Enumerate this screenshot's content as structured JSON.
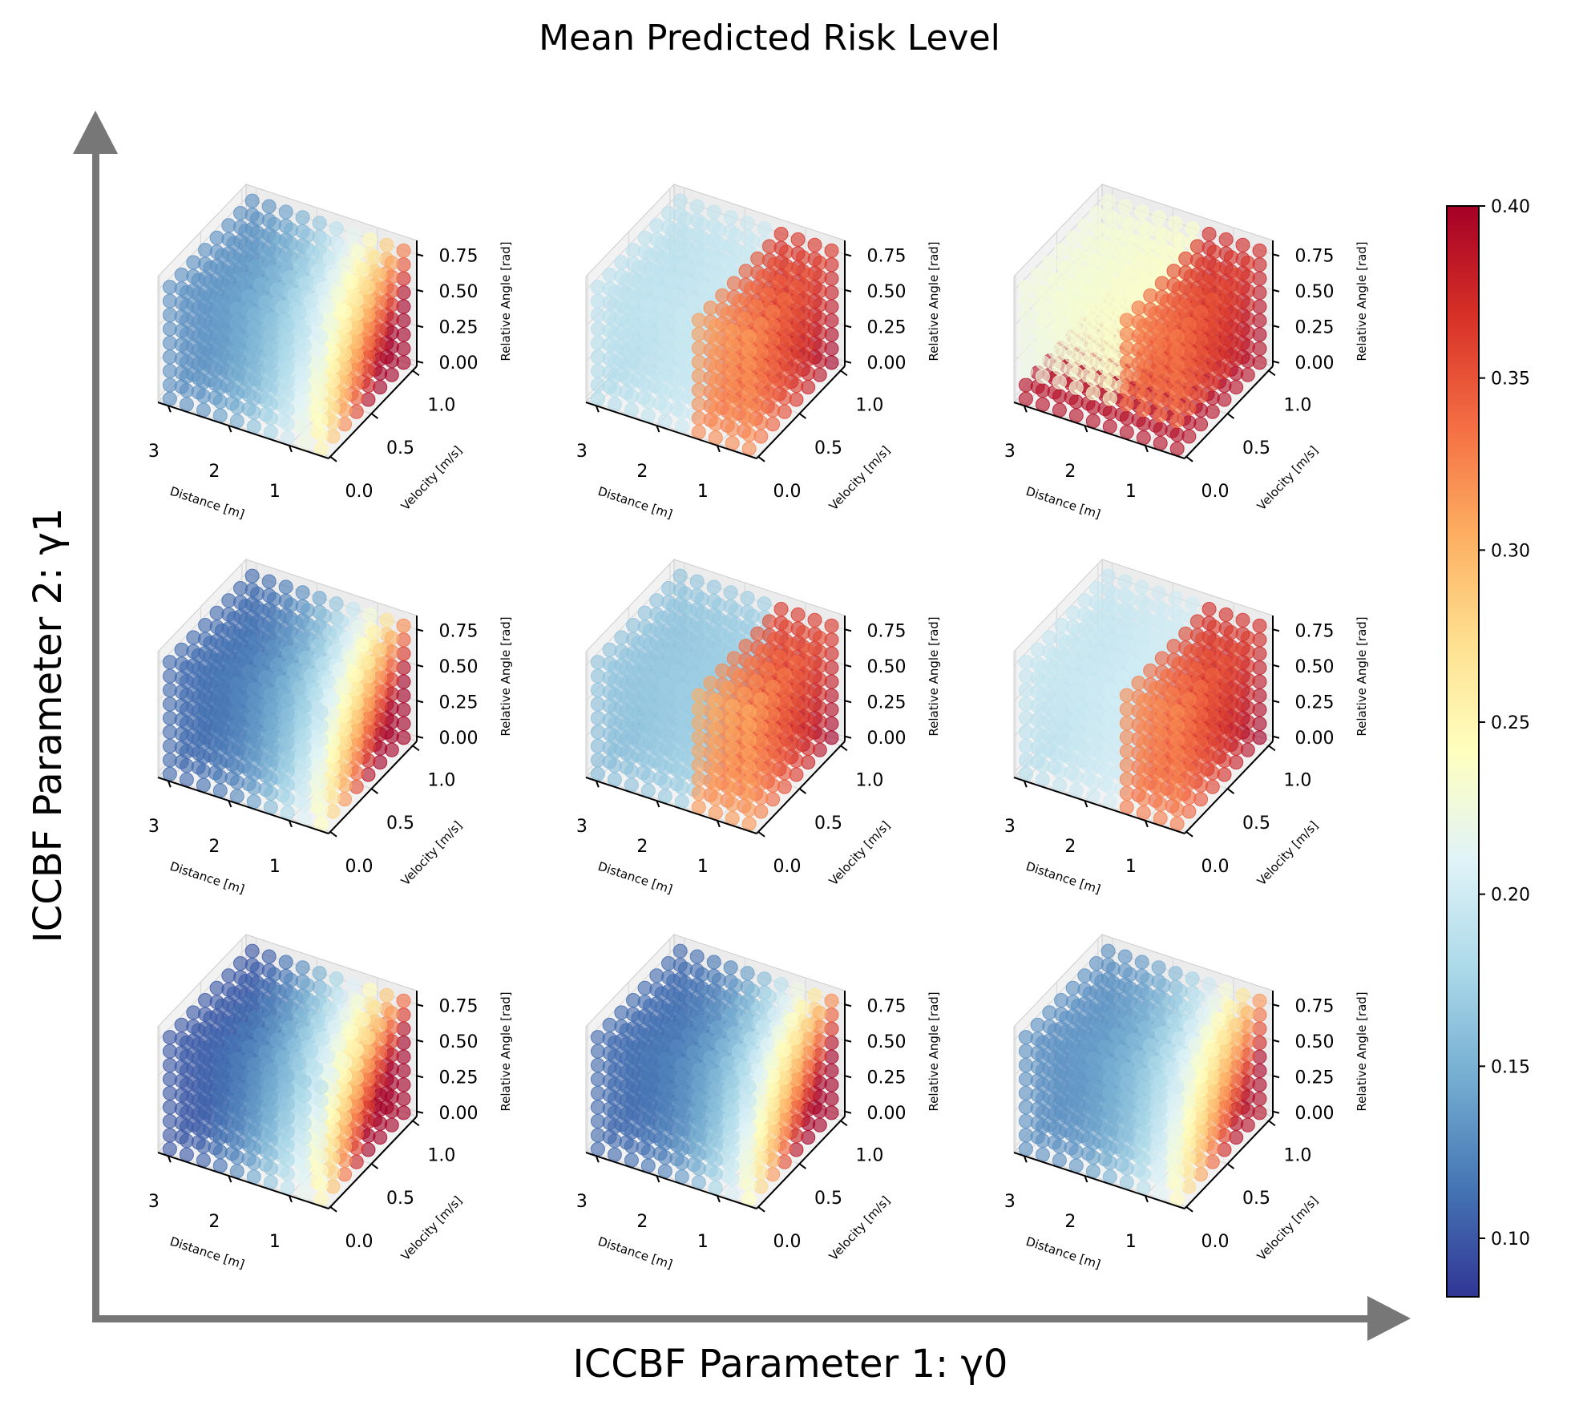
{
  "chart_data": {
    "type": "scatter",
    "subtype": "3d-scatter-grid",
    "title": "Mean Predicted Risk Level",
    "xlabel": "ICCBF Parameter 1: γ0",
    "ylabel": "ICCBF Parameter 2: γ1",
    "colormap": "RdYlBu_r",
    "colorbar": {
      "min": 0.083,
      "max": 0.4,
      "ticks": [
        "0.10",
        "0.15",
        "0.20",
        "0.25",
        "0.30",
        "0.35",
        "0.40"
      ],
      "tick_values": [
        0.1,
        0.15,
        0.2,
        0.25,
        0.3,
        0.35,
        0.4
      ],
      "placement": "right"
    },
    "axes3d": {
      "distance": {
        "label": "Distance [m]",
        "ticks": [
          "1",
          "2",
          "3"
        ],
        "tick_values": [
          1,
          2,
          3
        ],
        "range": [
          0.35,
          3.17
        ],
        "grid": [
          0.5,
          3.0,
          10
        ]
      },
      "velocity": {
        "label": "Velocity [m/s]",
        "ticks": [
          "0.0",
          "0.5",
          "1.0"
        ],
        "tick_values": [
          0,
          0.5,
          1.0
        ],
        "range": [
          -0.02,
          1.05
        ],
        "grid": [
          0.0,
          1.0,
          8
        ]
      },
      "angle": {
        "label": "Relative Angle [rad]",
        "ticks": [
          "0.00",
          "0.25",
          "0.50",
          "0.75"
        ],
        "tick_values": [
          0,
          0.25,
          0.5,
          0.75
        ],
        "range": [
          -0.035,
          0.847
        ],
        "grid": [
          0.0,
          0.785,
          9
        ]
      }
    },
    "panels": [
      {
        "row": "top",
        "col": "left",
        "risk": {
          "type": "smooth",
          "lo": 0.13,
          "hi": 0.42,
          "p": 2.2
        }
      },
      {
        "row": "top",
        "col": "middle",
        "risk": {
          "type": "step",
          "bg": 0.205,
          "step_d": 1.4,
          "near_lo": 0.29,
          "near_hi": 0.4
        }
      },
      {
        "row": "top",
        "col": "right",
        "risk": {
          "type": "step",
          "bg": 0.245,
          "step_d": 1.4,
          "near_lo": 0.31,
          "near_hi": 0.4,
          "floor_a": 0.1,
          "floor": 0.39
        }
      },
      {
        "row": "middle",
        "col": "left",
        "risk": {
          "type": "smooth",
          "lo": 0.11,
          "hi": 0.42,
          "p": 2.4
        }
      },
      {
        "row": "middle",
        "col": "middle",
        "risk": {
          "type": "step",
          "bg": 0.18,
          "step_d": 1.4,
          "near_lo": 0.28,
          "near_hi": 0.4
        }
      },
      {
        "row": "middle",
        "col": "right",
        "risk": {
          "type": "step",
          "bg": 0.21,
          "step_d": 1.4,
          "near_lo": 0.3,
          "near_hi": 0.4
        }
      },
      {
        "row": "bottom",
        "col": "left",
        "risk": {
          "type": "smooth",
          "lo": 0.1,
          "hi": 0.45,
          "p": 2.0
        }
      },
      {
        "row": "bottom",
        "col": "middle",
        "risk": {
          "type": "smooth",
          "lo": 0.11,
          "hi": 0.42,
          "p": 2.6
        }
      },
      {
        "row": "bottom",
        "col": "right",
        "risk": {
          "type": "smooth",
          "lo": 0.13,
          "hi": 0.4,
          "p": 2.6
        }
      }
    ],
    "colors": {
      "arrow": "#777777",
      "pane": "#f2f2f2",
      "pane_grid": "#d9d9d9"
    }
  }
}
